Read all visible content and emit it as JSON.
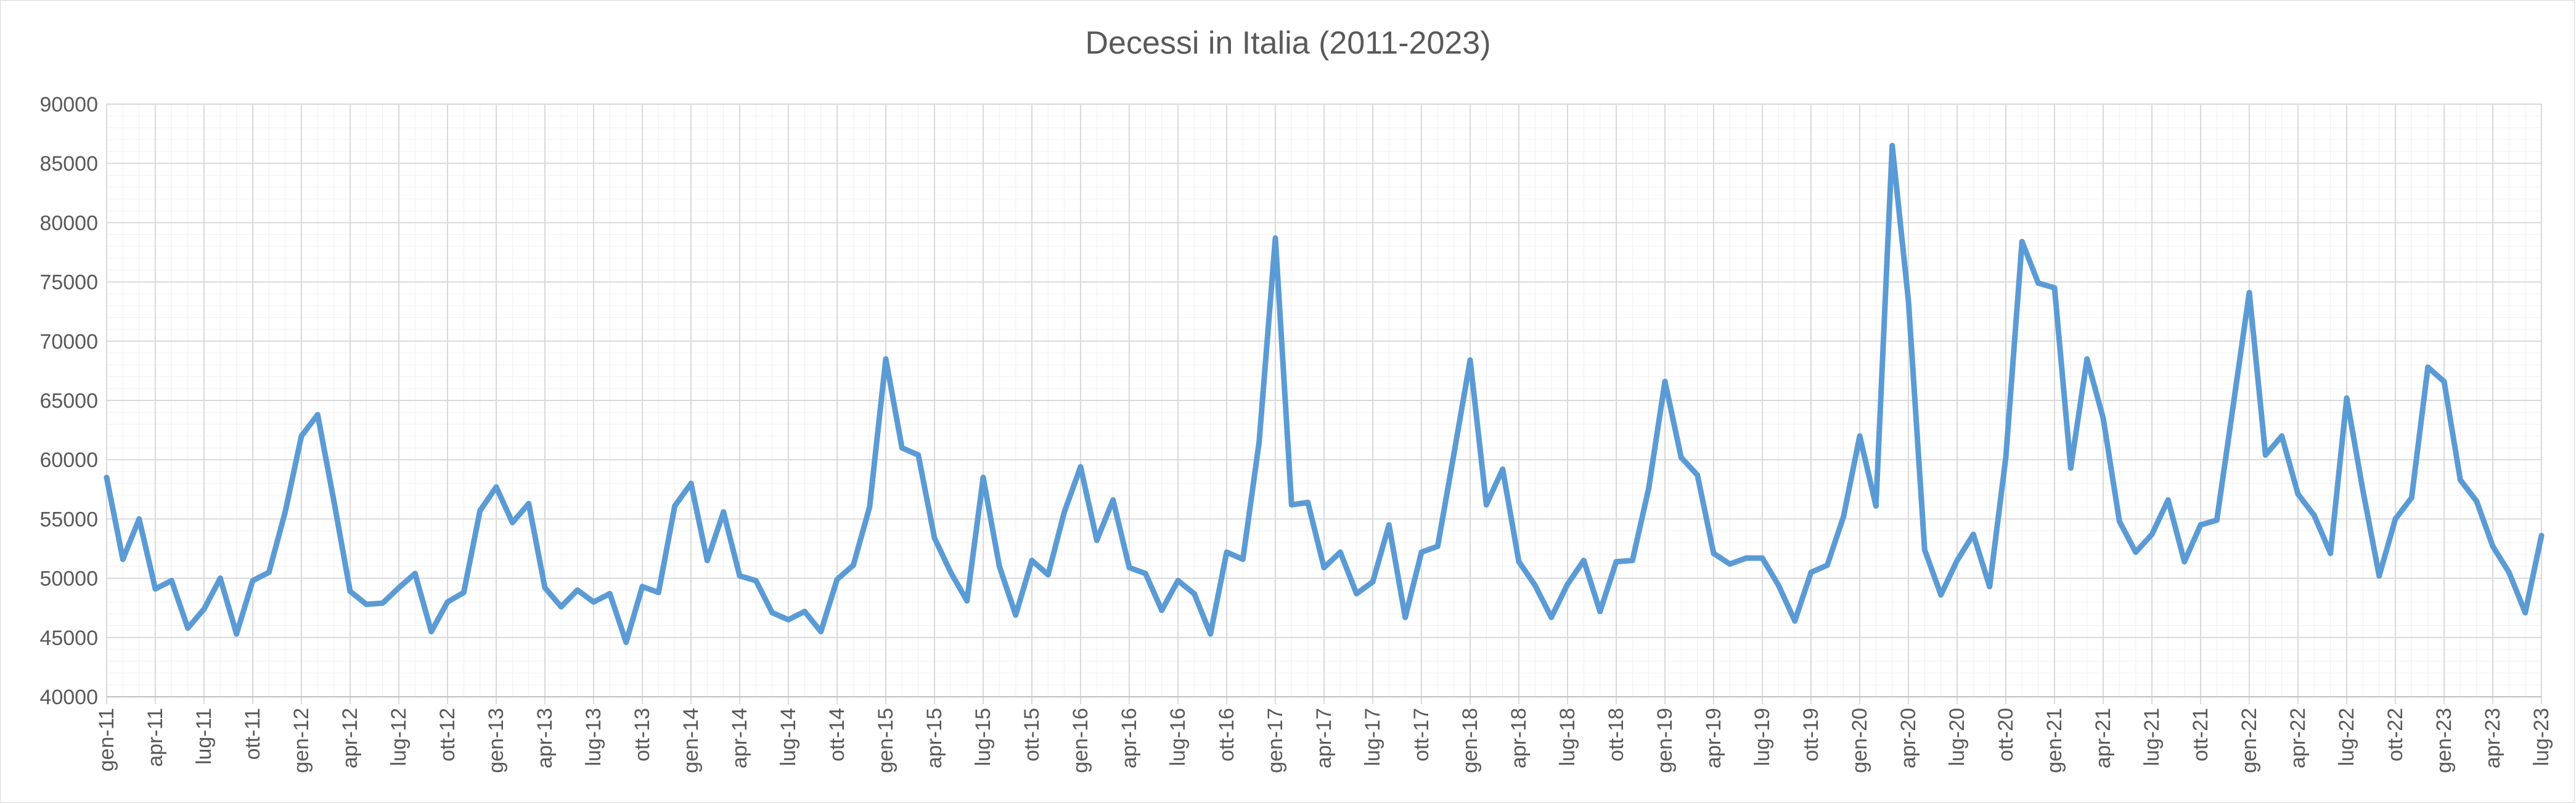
{
  "chart_data": {
    "type": "line",
    "title": "Decessi in Italia (2011-2023)",
    "xlabel": "",
    "ylabel": "",
    "ylim": [
      40000,
      90000
    ],
    "yticks": [
      40000,
      45000,
      50000,
      55000,
      60000,
      65000,
      70000,
      75000,
      80000,
      85000,
      90000
    ],
    "grid": true,
    "legend": "none",
    "line_color": "#5b9bd5",
    "x_tick_labels": [
      "gen-11",
      "apr-11",
      "lug-11",
      "ott-11",
      "gen-12",
      "apr-12",
      "lug-12",
      "ott-12",
      "gen-13",
      "apr-13",
      "lug-13",
      "ott-13",
      "gen-14",
      "apr-14",
      "lug-14",
      "ott-14",
      "gen-15",
      "apr-15",
      "lug-15",
      "ott-15",
      "gen-16",
      "apr-16",
      "lug-16",
      "ott-16",
      "gen-17",
      "apr-17",
      "lug-17",
      "ott-17",
      "gen-18",
      "apr-18",
      "lug-18",
      "ott-18",
      "gen-19",
      "apr-19",
      "lug-19",
      "ott-19",
      "gen-20",
      "apr-20",
      "lug-20",
      "ott-20",
      "gen-21",
      "apr-21",
      "lug-21",
      "ott-21",
      "gen-22",
      "apr-22",
      "lug-22",
      "ott-22",
      "gen-23",
      "apr-23",
      "lug-23"
    ],
    "series": [
      {
        "values": [
          58500,
          51600,
          55000,
          49100,
          49800,
          45800,
          47400,
          50000,
          45300,
          49800,
          50500,
          55600,
          62000,
          63800,
          56500,
          48900,
          47800,
          47900,
          49200,
          50400,
          45500,
          48000,
          48800,
          55700,
          57700,
          54700,
          56300,
          49200,
          47600,
          49000,
          48000,
          48700,
          44600,
          49300,
          48800,
          56100,
          58000,
          51500,
          55600,
          50200,
          49800,
          47100,
          46500,
          47200,
          45500,
          49900,
          51100,
          56000,
          68500,
          61000,
          60400,
          53400,
          50500,
          48100,
          58500,
          51000,
          46900,
          51500,
          50300,
          55600,
          59400,
          53200,
          56600,
          50900,
          50400,
          47300,
          49800,
          48700,
          45300,
          52200,
          51600,
          61500,
          78700,
          56200,
          56400,
          50900,
          52200,
          48700,
          49700,
          54500,
          46700,
          52200,
          52700,
          60500,
          68400,
          56200,
          59200,
          51400,
          49400,
          46700,
          49500,
          51500,
          47200,
          51400,
          51500,
          57600,
          66600,
          60200,
          58700,
          52100,
          51200,
          51700,
          51700,
          49400,
          46400,
          50500,
          51100,
          55200,
          62000,
          56100,
          86500,
          73400,
          52400,
          48600,
          51500,
          53700,
          49300,
          60200,
          78400,
          74900,
          74500,
          59300,
          68500,
          63500,
          54800,
          52200,
          53700,
          56600,
          51400,
          54500,
          54900,
          64500,
          74100,
          60400,
          62000,
          57100,
          55300,
          52100,
          65200,
          57400,
          50200,
          55000,
          56800,
          67800,
          66600,
          58300,
          56500,
          52700,
          50500,
          47100,
          53600
        ]
      }
    ]
  }
}
